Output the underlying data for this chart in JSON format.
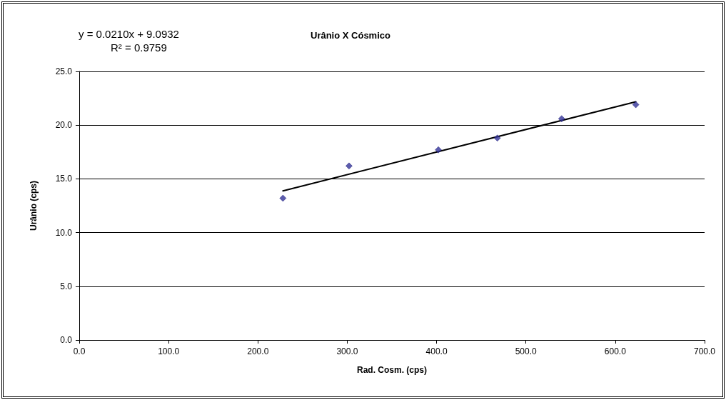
{
  "chart_data": {
    "type": "scatter",
    "title": "Urânio X Cósmico",
    "xlabel": "Rad. Cosm. (cps)",
    "ylabel": "Urânio (cps)",
    "annotations": [
      "y = 0.0210x + 9.0932",
      "R² = 0.9759"
    ],
    "series": [
      {
        "color": "#333399",
        "marker": "diamond",
        "x": [
          228,
          302,
          402,
          468,
          540,
          623
        ],
        "values": [
          13.2,
          16.2,
          17.7,
          18.8,
          20.6,
          21.9
        ]
      },
      {
        "type": "line",
        "color": "#000000",
        "marker": "none",
        "line_style": "solid",
        "x": [
          228,
          623
        ],
        "values": [
          13.88,
          22.18
        ]
      }
    ],
    "xlim": [
      0,
      700
    ],
    "xticks": [
      {
        "value": 0,
        "label": "0.0"
      },
      {
        "value": 100,
        "label": "100.0"
      },
      {
        "value": 200,
        "label": "200.0"
      },
      {
        "value": 300,
        "label": "300.0"
      },
      {
        "value": 400,
        "label": "400.0"
      },
      {
        "value": 500,
        "label": "500.0"
      },
      {
        "value": 600,
        "label": "600.0"
      },
      {
        "value": 700,
        "label": "700.0"
      }
    ],
    "ylim": [
      0,
      25
    ],
    "yticks": [
      {
        "value": 0,
        "label": "0.0"
      },
      {
        "value": 5,
        "label": "5.0"
      },
      {
        "value": 10,
        "label": "10.0"
      },
      {
        "value": 15,
        "label": "15.0"
      },
      {
        "value": 20,
        "label": "20.0"
      },
      {
        "value": 25,
        "label": "25.0"
      }
    ],
    "grid": "y"
  }
}
